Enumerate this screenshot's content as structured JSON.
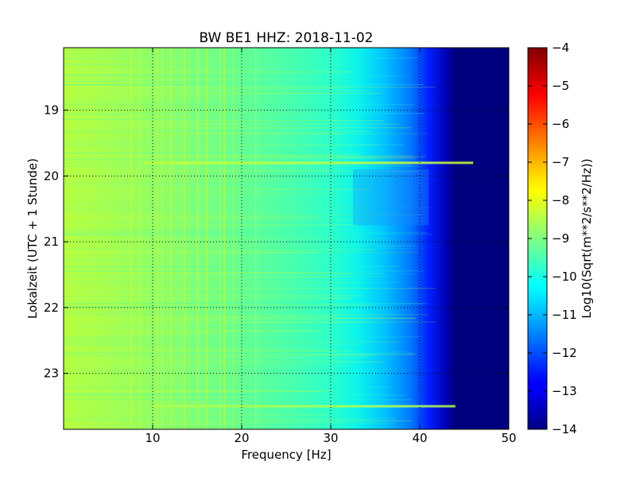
{
  "chart_data": {
    "type": "heatmap",
    "title": "BW BE1 HHZ: 2018-11-02",
    "xlabel": "Frequency [Hz]",
    "ylabel": "Lokalzeit (UTC + 1 Stunde)",
    "colorbar_label": "Log10(Sqrt(m**2/s**2/Hz))",
    "colormap": "jet",
    "grid": true,
    "xlim": [
      0,
      50
    ],
    "ylim_hours": [
      18.05,
      23.85
    ],
    "x_ticks": [
      10,
      20,
      30,
      40,
      50
    ],
    "y_ticks": [
      19,
      20,
      21,
      22,
      23
    ],
    "color_range": [
      -14,
      -4
    ],
    "colorbar_ticks": [
      "-4",
      "-5",
      "-6",
      "-7",
      "-8",
      "-9",
      "-10",
      "-11",
      "-12",
      "-13",
      "-14"
    ],
    "frequency_profile": {
      "freq_hz": [
        0,
        5,
        10,
        15,
        20,
        25,
        30,
        32,
        35,
        38,
        40,
        42,
        44,
        45,
        50
      ],
      "log_amplitude": [
        -8.6,
        -8.7,
        -8.9,
        -9.2,
        -9.5,
        -9.8,
        -10.2,
        -10.6,
        -11.0,
        -11.6,
        -12.3,
        -13.2,
        -14.0,
        -14.0,
        -14.0
      ]
    },
    "narrowband_features": [
      {
        "time_hour": 19.8,
        "freq_range_hz": [
          9,
          46
        ],
        "log_amplitude": -8.3
      },
      {
        "time_hour": 23.5,
        "freq_range_hz": [
          10,
          44
        ],
        "log_amplitude": -8.5
      }
    ]
  }
}
